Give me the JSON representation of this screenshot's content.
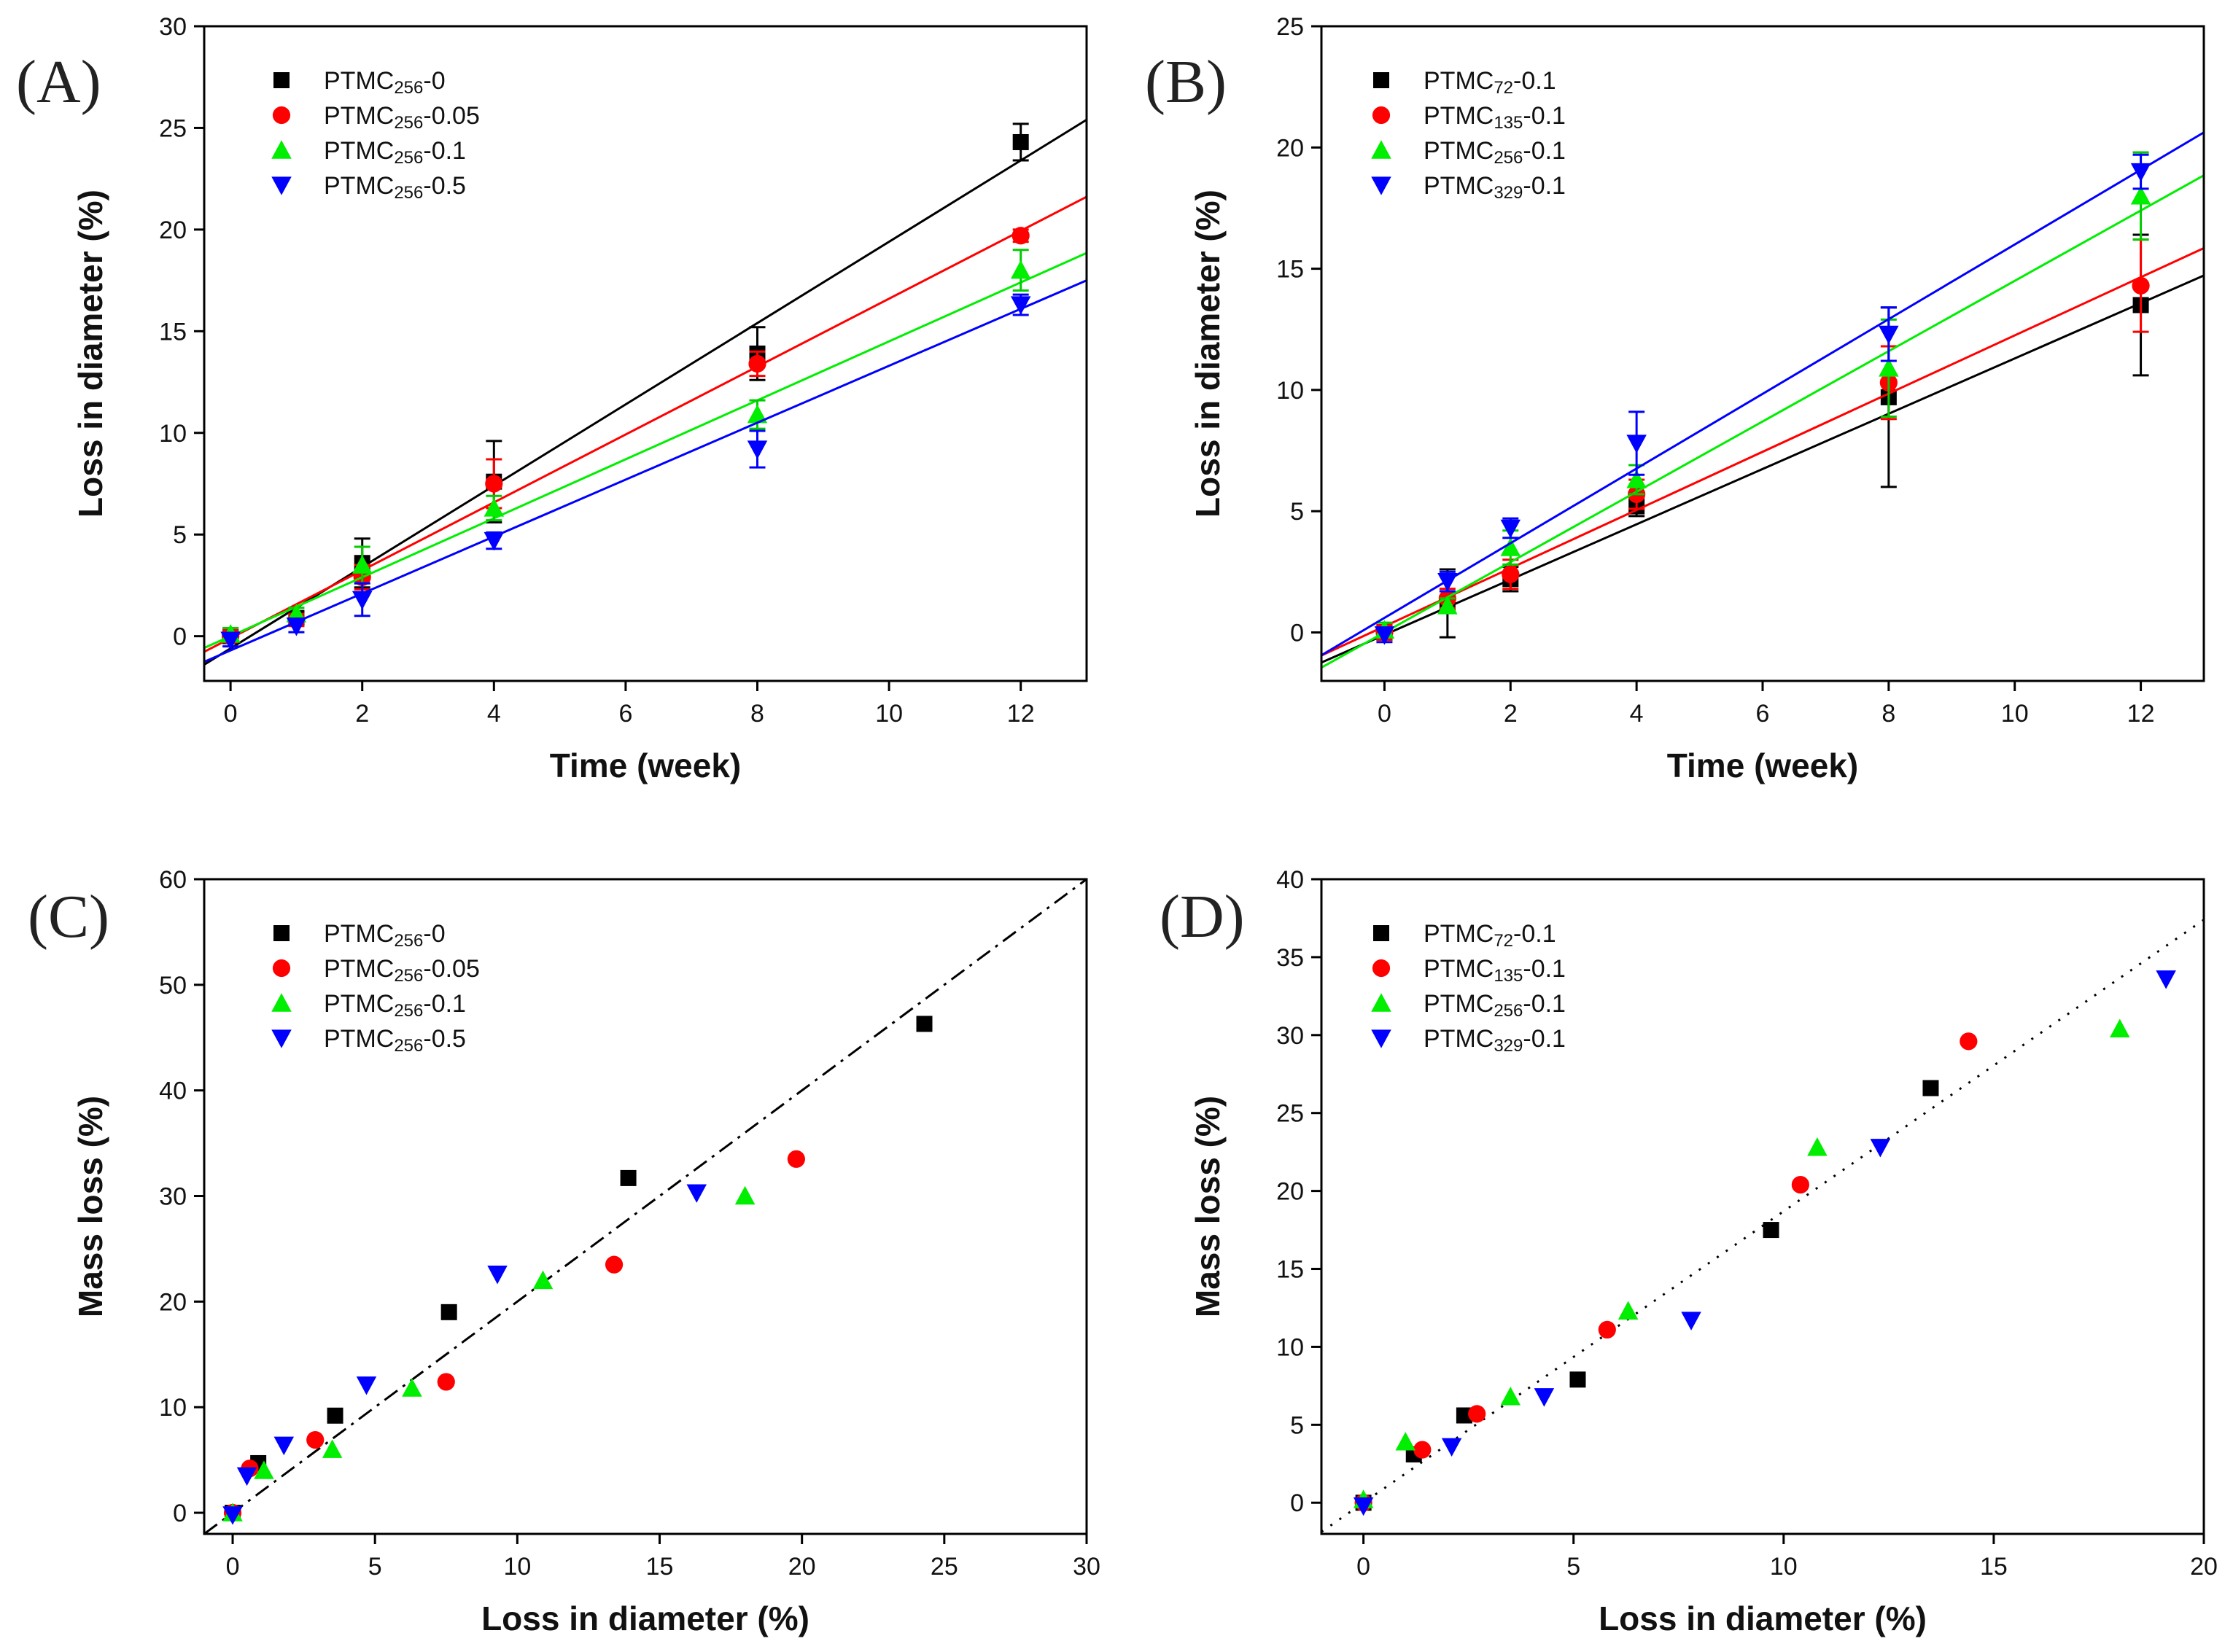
{
  "chart_data": [
    {
      "id": "A",
      "type": "scatter",
      "panel_label": "(A)",
      "xlabel": "Time (week)",
      "ylabel": "Loss in diameter (%)",
      "xlim": [
        -0.4,
        13
      ],
      "ylim": [
        -2.2,
        30
      ],
      "xticks": [
        0,
        2,
        4,
        6,
        8,
        10,
        12
      ],
      "yticks": [
        0,
        5,
        10,
        15,
        20,
        25,
        30
      ],
      "legend_position": "top-left",
      "series": [
        {
          "name": "PTMC256-0",
          "base": "PTMC",
          "sub": "256",
          "suffix": "-0",
          "marker": "square",
          "color": "#000000",
          "x": [
            0,
            1,
            2,
            4,
            8,
            12
          ],
          "y": [
            0.0,
            0.9,
            3.6,
            7.6,
            13.9,
            24.3
          ],
          "err": [
            0.3,
            0.3,
            1.2,
            2.0,
            1.3,
            0.9
          ],
          "fit": {
            "slope": 2.0,
            "intercept": -0.6
          }
        },
        {
          "name": "PTMC256-0.05",
          "base": "PTMC",
          "sub": "256",
          "suffix": "-0.05",
          "marker": "circle",
          "color": "#ff0000",
          "x": [
            0,
            1,
            2,
            4,
            8,
            12
          ],
          "y": [
            0.0,
            0.8,
            2.9,
            7.5,
            13.4,
            19.7
          ],
          "err": [
            0.3,
            0.3,
            0.6,
            1.2,
            0.6,
            0.3
          ],
          "fit": {
            "slope": 1.67,
            "intercept": -0.1
          }
        },
        {
          "name": "PTMC256-0.1",
          "base": "PTMC",
          "sub": "256",
          "suffix": "-0.1",
          "marker": "triangle-up",
          "color": "#00ee00",
          "x": [
            0,
            1,
            2,
            4,
            8,
            12
          ],
          "y": [
            0.1,
            1.1,
            3.5,
            6.3,
            10.9,
            18.0
          ],
          "err": [
            0.3,
            0.3,
            0.9,
            0.6,
            0.7,
            1.0
          ],
          "fit": {
            "slope": 1.45,
            "intercept": 0.0
          }
        },
        {
          "name": "PTMC256-0.5",
          "base": "PTMC",
          "sub": "256",
          "suffix": "-0.5",
          "marker": "triangle-down",
          "color": "#0000ff",
          "x": [
            0,
            1,
            2,
            4,
            8,
            12
          ],
          "y": [
            -0.2,
            0.5,
            1.8,
            4.7,
            9.2,
            16.3
          ],
          "err": [
            0.3,
            0.3,
            0.8,
            0.4,
            0.9,
            0.5
          ],
          "fit": {
            "slope": 1.4,
            "intercept": -0.7
          }
        }
      ]
    },
    {
      "id": "B",
      "type": "scatter",
      "panel_label": "(B)",
      "xlabel": "Time (week)",
      "ylabel": "Loss in diameter (%)",
      "xlim": [
        -1,
        13
      ],
      "ylim": [
        -2,
        25
      ],
      "xticks": [
        0,
        2,
        4,
        6,
        8,
        10,
        12
      ],
      "yticks": [
        0,
        5,
        10,
        15,
        20,
        25
      ],
      "legend_position": "top-left",
      "series": [
        {
          "name": "PTMC72-0.1",
          "base": "PTMC",
          "sub": "72",
          "suffix": "-0.1",
          "marker": "square",
          "color": "#000000",
          "x": [
            0,
            1,
            2,
            4,
            8,
            12
          ],
          "y": [
            0.0,
            1.2,
            2.2,
            5.2,
            9.7,
            13.5
          ],
          "err": [
            0.3,
            1.4,
            0.5,
            0.4,
            3.7,
            2.9
          ],
          "fit": {
            "slope": 1.14,
            "intercept": -0.1
          }
        },
        {
          "name": "PTMC135-0.1",
          "base": "PTMC",
          "sub": "135",
          "suffix": "-0.1",
          "marker": "circle",
          "color": "#ff0000",
          "x": [
            0,
            1,
            2,
            4,
            8,
            12
          ],
          "y": [
            0.0,
            1.4,
            2.4,
            5.7,
            10.3,
            14.3
          ],
          "err": [
            0.3,
            0.4,
            0.6,
            0.6,
            1.5,
            1.9
          ],
          "fit": {
            "slope": 1.2,
            "intercept": 0.25
          }
        },
        {
          "name": "PTMC256-0.1",
          "base": "PTMC",
          "sub": "256",
          "suffix": "-0.1",
          "marker": "triangle-up",
          "color": "#00ee00",
          "x": [
            0,
            1,
            2,
            4,
            8,
            12
          ],
          "y": [
            0.1,
            1.1,
            3.5,
            6.3,
            10.9,
            18.0
          ],
          "err": [
            0.3,
            0.3,
            0.7,
            0.6,
            2.0,
            1.8
          ],
          "fit": {
            "slope": 1.45,
            "intercept": 0.0
          }
        },
        {
          "name": "PTMC329-0.1",
          "base": "PTMC",
          "sub": "329",
          "suffix": "-0.1",
          "marker": "triangle-down",
          "color": "#0000ff",
          "x": [
            0,
            1,
            2,
            4,
            8,
            12
          ],
          "y": [
            -0.1,
            2.1,
            4.3,
            7.8,
            12.3,
            19.0
          ],
          "err": [
            0.3,
            0.4,
            0.4,
            1.3,
            1.1,
            0.7
          ],
          "fit": {
            "slope": 1.54,
            "intercept": 0.6
          }
        }
      ]
    },
    {
      "id": "C",
      "type": "scatter",
      "panel_label": "(C)",
      "xlabel": "Loss in diameter (%)",
      "ylabel": "Mass loss (%)",
      "xlim": [
        -1,
        30
      ],
      "ylim": [
        -2,
        60
      ],
      "xticks": [
        0,
        5,
        10,
        15,
        20,
        25,
        30
      ],
      "yticks": [
        0,
        10,
        20,
        30,
        40,
        50,
        60
      ],
      "legend_position": "top-left",
      "reference_line": {
        "style": "dash-dot",
        "slope": 2.0,
        "intercept": 0
      },
      "series": [
        {
          "name": "PTMC256-0",
          "base": "PTMC",
          "sub": "256",
          "suffix": "-0",
          "marker": "square",
          "color": "#000000",
          "x": [
            0.0,
            0.9,
            3.6,
            7.6,
            13.9,
            24.3
          ],
          "y": [
            0,
            4.7,
            9.2,
            19.0,
            31.7,
            46.3
          ]
        },
        {
          "name": "PTMC256-0.05",
          "base": "PTMC",
          "sub": "256",
          "suffix": "-0.05",
          "marker": "circle",
          "color": "#ff0000",
          "x": [
            0.0,
            0.6,
            2.9,
            7.5,
            13.4,
            19.8
          ],
          "y": [
            0,
            4.2,
            6.9,
            12.4,
            23.5,
            33.5
          ]
        },
        {
          "name": "PTMC256-0.1",
          "base": "PTMC",
          "sub": "256",
          "suffix": "-0.1",
          "marker": "triangle-up",
          "color": "#00ee00",
          "x": [
            0.0,
            1.1,
            3.5,
            6.3,
            10.9,
            18.0
          ],
          "y": [
            0,
            4.0,
            6.0,
            11.8,
            22.0,
            30.0
          ]
        },
        {
          "name": "PTMC256-0.5",
          "base": "PTMC",
          "sub": "256",
          "suffix": "-0.5",
          "marker": "triangle-down",
          "color": "#0000ff",
          "x": [
            0.0,
            0.5,
            1.8,
            4.7,
            9.3,
            16.3
          ],
          "y": [
            -0.2,
            3.5,
            6.4,
            12.1,
            22.6,
            30.3
          ]
        }
      ]
    },
    {
      "id": "D",
      "type": "scatter",
      "panel_label": "(D)",
      "xlabel": "Loss in diameter (%)",
      "ylabel": "Mass loss (%)",
      "xlim": [
        -1,
        20
      ],
      "ylim": [
        -2,
        40
      ],
      "xticks": [
        0,
        5,
        10,
        15,
        20
      ],
      "yticks": [
        0,
        5,
        10,
        15,
        20,
        25,
        30,
        35,
        40
      ],
      "legend_position": "top-left",
      "reference_line": {
        "style": "dotted",
        "slope": 1.87,
        "intercept": 0
      },
      "series": [
        {
          "name": "PTMC72-0.1",
          "base": "PTMC",
          "sub": "72",
          "suffix": "-0.1",
          "marker": "square",
          "color": "#000000",
          "x": [
            0.0,
            1.2,
            2.4,
            5.1,
            9.7,
            13.5
          ],
          "y": [
            0,
            3.1,
            5.6,
            7.9,
            17.5,
            26.6
          ]
        },
        {
          "name": "PTMC135-0.1",
          "base": "PTMC",
          "sub": "135",
          "suffix": "-0.1",
          "marker": "circle",
          "color": "#ff0000",
          "x": [
            0.0,
            1.4,
            2.7,
            5.8,
            10.4,
            14.4
          ],
          "y": [
            0,
            3.4,
            5.7,
            11.1,
            20.4,
            29.6
          ]
        },
        {
          "name": "PTMC256-0.1",
          "base": "PTMC",
          "sub": "256",
          "suffix": "-0.1",
          "marker": "triangle-up",
          "color": "#00ee00",
          "x": [
            0.0,
            1.0,
            3.5,
            6.3,
            10.8,
            18.0
          ],
          "y": [
            0.2,
            3.9,
            6.8,
            12.3,
            22.8,
            30.4
          ]
        },
        {
          "name": "PTMC329-0.1",
          "base": "PTMC",
          "sub": "329",
          "suffix": "-0.1",
          "marker": "triangle-down",
          "color": "#0000ff",
          "x": [
            0.0,
            2.1,
            4.3,
            7.8,
            12.3,
            19.1
          ],
          "y": [
            -0.2,
            3.6,
            6.8,
            11.7,
            22.8,
            33.6
          ]
        }
      ]
    }
  ]
}
